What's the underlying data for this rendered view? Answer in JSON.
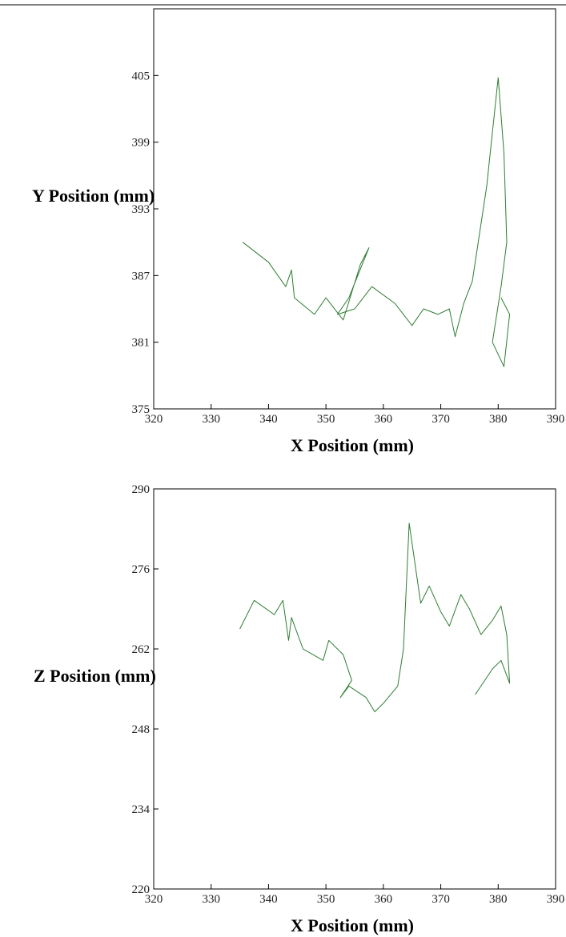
{
  "chart_data": [
    {
      "type": "line",
      "color": "#2e7d32",
      "xlabel": "X Position (mm)",
      "ylabel": "Y Position (mm)",
      "xlim": [
        320,
        390
      ],
      "ylim": [
        375,
        411
      ],
      "x_ticks": [
        "320",
        "330",
        "340",
        "350",
        "360",
        "370",
        "380",
        "390"
      ],
      "y_ticks": [
        "375",
        "381",
        "387",
        "393",
        "399",
        "405"
      ],
      "grid": false,
      "x": [
        335.5,
        340,
        343,
        344,
        344.5,
        348,
        350,
        353,
        356,
        357.5,
        354,
        352,
        355,
        358,
        362,
        365,
        367,
        369.5,
        371.5,
        372.5,
        374,
        375.5,
        378,
        380,
        381,
        381.5,
        380.5,
        379,
        381,
        382,
        380.5
      ],
      "y": [
        390,
        388.2,
        386,
        387.5,
        385,
        383.5,
        385,
        383,
        388,
        389.5,
        385,
        383.5,
        384,
        386,
        384.5,
        382.5,
        384,
        383.5,
        384,
        381.5,
        384.5,
        386.5,
        395,
        404.8,
        398,
        390,
        386,
        381,
        378.8,
        383.5,
        385
      ]
    },
    {
      "type": "line",
      "color": "#2e7d32",
      "xlabel": "X Position (mm)",
      "ylabel": "Z Position (mm)",
      "xlim": [
        320,
        390
      ],
      "ylim": [
        220,
        290
      ],
      "x_ticks": [
        "320",
        "330",
        "340",
        "350",
        "360",
        "370",
        "380",
        "390"
      ],
      "y_ticks": [
        "220",
        "234",
        "248",
        "262",
        "276",
        "290"
      ],
      "grid": false,
      "x": [
        335,
        337.5,
        341,
        342.5,
        343.5,
        344,
        346,
        349.5,
        350.5,
        353,
        354.5,
        352.5,
        354,
        357,
        358.5,
        360,
        362.5,
        363.5,
        364.5,
        366.5,
        368,
        370,
        371.5,
        373.5,
        375,
        377,
        379,
        380.5,
        381.5,
        382,
        380.5,
        379,
        376
      ],
      "y": [
        265.5,
        270.5,
        268,
        270.5,
        263.5,
        267.5,
        262,
        260,
        263.5,
        261,
        256.5,
        253.5,
        255.5,
        253.5,
        251,
        252.5,
        255.5,
        262,
        284,
        270,
        273,
        268.5,
        266,
        271.5,
        269,
        264.5,
        267,
        269.5,
        264.5,
        256,
        260,
        258.5,
        254
      ]
    }
  ]
}
